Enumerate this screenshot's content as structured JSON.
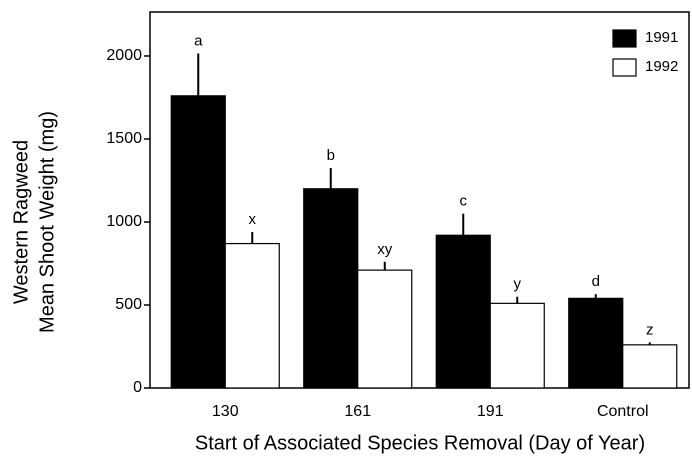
{
  "chart_data": {
    "type": "bar",
    "y_label": [
      "Western Ragweed",
      "Mean Shoot Weight (mg)"
    ],
    "x_label": "Start of Associated Species Removal (Day of Year)",
    "categories": [
      "130",
      "161",
      "191",
      "Control"
    ],
    "series": [
      {
        "name": "1991",
        "color": "#000000",
        "values": [
          1760,
          1200,
          920,
          540
        ],
        "errors": [
          255,
          125,
          130,
          25
        ],
        "letters": [
          "a",
          "b",
          "c",
          "d"
        ]
      },
      {
        "name": "1992",
        "color": "#ffffff",
        "values": [
          870,
          710,
          510,
          260
        ],
        "errors": [
          70,
          50,
          40,
          15
        ],
        "letters": [
          "x",
          "xy",
          "y",
          "z"
        ]
      }
    ],
    "ylim": [
      0,
      2265
    ],
    "yticks": [
      0,
      500,
      1000,
      1500,
      2000
    ],
    "legend": "top-right"
  }
}
